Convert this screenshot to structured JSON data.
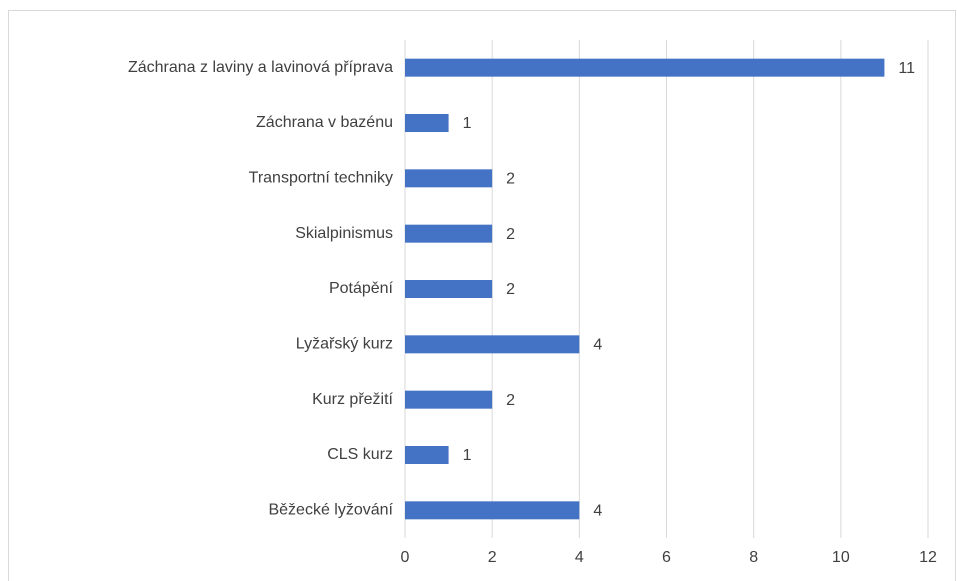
{
  "chart_data": {
    "type": "bar",
    "orientation": "horizontal",
    "categories": [
      "Záchrana z laviny a lavinová příprava",
      "Záchrana v bazénu",
      "Transportní techniky",
      "Skialpinismus",
      "Potápění",
      "Lyžařský kurz",
      "Kurz přežití",
      "CLS kurz",
      "Běžecké lyžování"
    ],
    "values": [
      11,
      1,
      2,
      2,
      2,
      4,
      2,
      1,
      4
    ],
    "color": "#4472c4",
    "xlim": [
      0,
      12
    ],
    "xticks": [
      0,
      2,
      4,
      6,
      8,
      10,
      12
    ],
    "grid": true
  }
}
